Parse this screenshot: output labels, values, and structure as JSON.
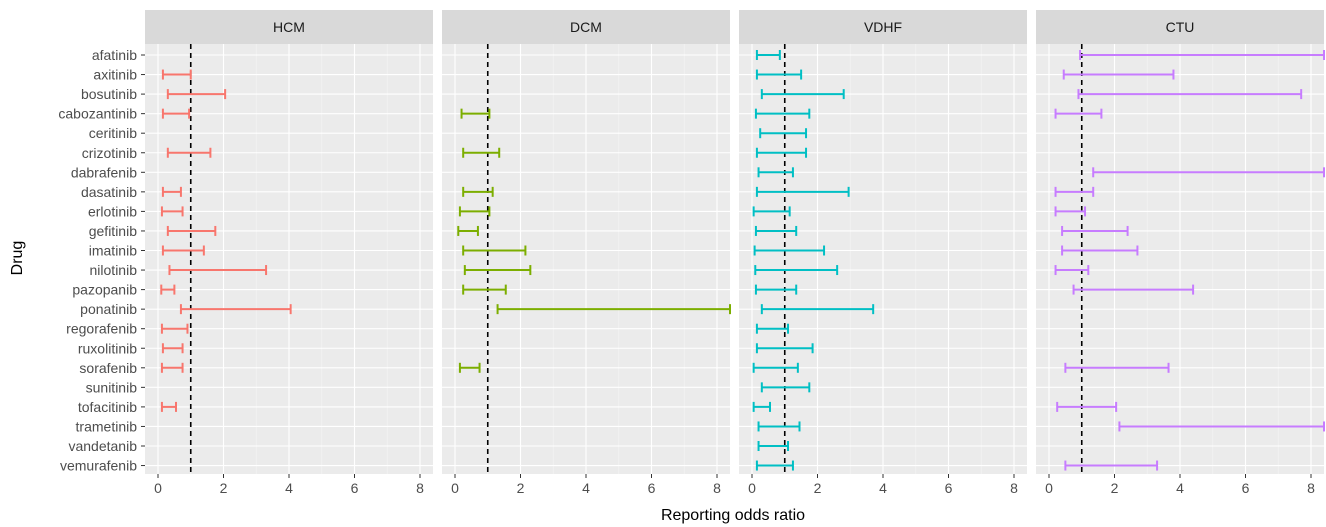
{
  "chart_data": {
    "type": "errorbar",
    "facets": [
      "HCM",
      "DCM",
      "VDHF",
      "CTU"
    ],
    "xlabel": "Reporting odds ratio",
    "ylabel": "Drug",
    "xlim": [
      -0.4,
      8.4
    ],
    "xticks": [
      0,
      2,
      4,
      6,
      8
    ],
    "reference_line": 1,
    "drugs": [
      "afatinib",
      "axitinib",
      "bosutinib",
      "cabozantinib",
      "ceritinib",
      "crizotinib",
      "dabrafenib",
      "dasatinib",
      "erlotinib",
      "gefitinib",
      "imatinib",
      "nilotinib",
      "pazopanib",
      "ponatinib",
      "regorafenib",
      "ruxolitinib",
      "sorafenib",
      "sunitinib",
      "tofacitinib",
      "trametinib",
      "vandetanib",
      "vemurafenib"
    ],
    "colors": {
      "HCM": "#f8766d",
      "DCM": "#7cae00",
      "VDHF": "#00bfc4",
      "CTU": "#c77cff"
    },
    "intervals": {
      "HCM": [
        {
          "drug": "axitinib",
          "low": 0.15,
          "high": 1.0
        },
        {
          "drug": "bosutinib",
          "low": 0.3,
          "high": 2.05
        },
        {
          "drug": "cabozantinib",
          "low": 0.15,
          "high": 0.95
        },
        {
          "drug": "crizotinib",
          "low": 0.3,
          "high": 1.6
        },
        {
          "drug": "dasatinib",
          "low": 0.15,
          "high": 0.7
        },
        {
          "drug": "erlotinib",
          "low": 0.12,
          "high": 0.75
        },
        {
          "drug": "gefitinib",
          "low": 0.3,
          "high": 1.75
        },
        {
          "drug": "imatinib",
          "low": 0.15,
          "high": 1.4
        },
        {
          "drug": "nilotinib",
          "low": 0.35,
          "high": 3.3
        },
        {
          "drug": "pazopanib",
          "low": 0.1,
          "high": 0.5
        },
        {
          "drug": "ponatinib",
          "low": 0.7,
          "high": 4.05
        },
        {
          "drug": "regorafenib",
          "low": 0.12,
          "high": 0.9
        },
        {
          "drug": "ruxolitinib",
          "low": 0.15,
          "high": 0.75
        },
        {
          "drug": "sorafenib",
          "low": 0.12,
          "high": 0.75
        },
        {
          "drug": "tofacitinib",
          "low": 0.12,
          "high": 0.55
        }
      ],
      "DCM": [
        {
          "drug": "cabozantinib",
          "low": 0.2,
          "high": 1.05
        },
        {
          "drug": "crizotinib",
          "low": 0.25,
          "high": 1.35
        },
        {
          "drug": "dasatinib",
          "low": 0.25,
          "high": 1.15
        },
        {
          "drug": "erlotinib",
          "low": 0.15,
          "high": 1.05
        },
        {
          "drug": "gefitinib",
          "low": 0.1,
          "high": 0.7
        },
        {
          "drug": "imatinib",
          "low": 0.25,
          "high": 2.15
        },
        {
          "drug": "nilotinib",
          "low": 0.3,
          "high": 2.3
        },
        {
          "drug": "pazopanib",
          "low": 0.25,
          "high": 1.55
        },
        {
          "drug": "ponatinib",
          "low": 1.3,
          "high": 8.4
        },
        {
          "drug": "sorafenib",
          "low": 0.15,
          "high": 0.75
        }
      ],
      "VDHF": [
        {
          "drug": "afatinib",
          "low": 0.15,
          "high": 0.85
        },
        {
          "drug": "axitinib",
          "low": 0.15,
          "high": 1.5
        },
        {
          "drug": "bosutinib",
          "low": 0.3,
          "high": 2.8
        },
        {
          "drug": "cabozantinib",
          "low": 0.12,
          "high": 1.75
        },
        {
          "drug": "ceritinib",
          "low": 0.25,
          "high": 1.65
        },
        {
          "drug": "crizotinib",
          "low": 0.15,
          "high": 1.65
        },
        {
          "drug": "dabrafenib",
          "low": 0.2,
          "high": 1.25
        },
        {
          "drug": "dasatinib",
          "low": 0.15,
          "high": 2.95
        },
        {
          "drug": "erlotinib",
          "low": 0.05,
          "high": 1.15
        },
        {
          "drug": "gefitinib",
          "low": 0.12,
          "high": 1.35
        },
        {
          "drug": "imatinib",
          "low": 0.08,
          "high": 2.2
        },
        {
          "drug": "nilotinib",
          "low": 0.1,
          "high": 2.6
        },
        {
          "drug": "pazopanib",
          "low": 0.12,
          "high": 1.35
        },
        {
          "drug": "ponatinib",
          "low": 0.3,
          "high": 3.7
        },
        {
          "drug": "regorafenib",
          "low": 0.15,
          "high": 1.1
        },
        {
          "drug": "ruxolitinib",
          "low": 0.15,
          "high": 1.85
        },
        {
          "drug": "sorafenib",
          "low": 0.05,
          "high": 1.4
        },
        {
          "drug": "sunitinib",
          "low": 0.3,
          "high": 1.75
        },
        {
          "drug": "tofacitinib",
          "low": 0.05,
          "high": 0.55
        },
        {
          "drug": "trametinib",
          "low": 0.2,
          "high": 1.45
        },
        {
          "drug": "vandetanib",
          "low": 0.2,
          "high": 1.1
        },
        {
          "drug": "vemurafenib",
          "low": 0.15,
          "high": 1.25
        }
      ],
      "CTU": [
        {
          "drug": "afatinib",
          "low": 0.95,
          "high": 8.4
        },
        {
          "drug": "axitinib",
          "low": 0.45,
          "high": 3.8
        },
        {
          "drug": "bosutinib",
          "low": 0.9,
          "high": 7.7
        },
        {
          "drug": "cabozantinib",
          "low": 0.2,
          "high": 1.6
        },
        {
          "drug": "dabrafenib",
          "low": 1.35,
          "high": 8.4
        },
        {
          "drug": "dasatinib",
          "low": 0.2,
          "high": 1.35
        },
        {
          "drug": "erlotinib",
          "low": 0.2,
          "high": 1.1
        },
        {
          "drug": "gefitinib",
          "low": 0.4,
          "high": 2.4
        },
        {
          "drug": "imatinib",
          "low": 0.4,
          "high": 2.7
        },
        {
          "drug": "nilotinib",
          "low": 0.2,
          "high": 1.2
        },
        {
          "drug": "pazopanib",
          "low": 0.75,
          "high": 4.4
        },
        {
          "drug": "sorafenib",
          "low": 0.5,
          "high": 3.65
        },
        {
          "drug": "tofacitinib",
          "low": 0.25,
          "high": 2.05
        },
        {
          "drug": "trametinib",
          "low": 2.15,
          "high": 8.4
        },
        {
          "drug": "vemurafenib",
          "low": 0.5,
          "high": 3.3
        }
      ]
    }
  }
}
